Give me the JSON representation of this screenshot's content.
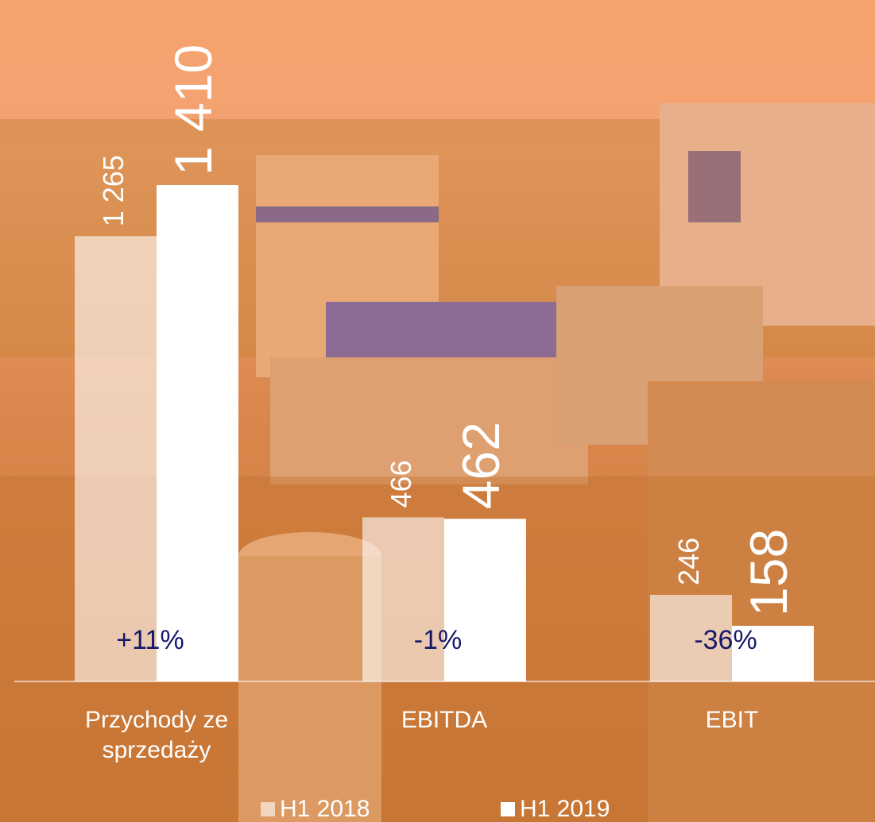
{
  "chart_data": {
    "type": "bar",
    "categories": [
      "Przychody ze sprzedaży",
      "EBITDA",
      "EBIT"
    ],
    "series": [
      {
        "name": "H1 2018",
        "color": "rgba(255,255,255,0.6)",
        "values": [
          1265,
          466,
          246
        ],
        "value_labels": [
          "1 265",
          "466",
          "246"
        ]
      },
      {
        "name": "H1 2019",
        "color": "#ffffff",
        "values": [
          1410,
          462,
          158
        ],
        "value_labels": [
          "1 410",
          "462",
          "158"
        ]
      }
    ],
    "annotations": [
      "+11%",
      "-1%",
      "-36%"
    ],
    "annotation_color": "#16186a"
  }
}
